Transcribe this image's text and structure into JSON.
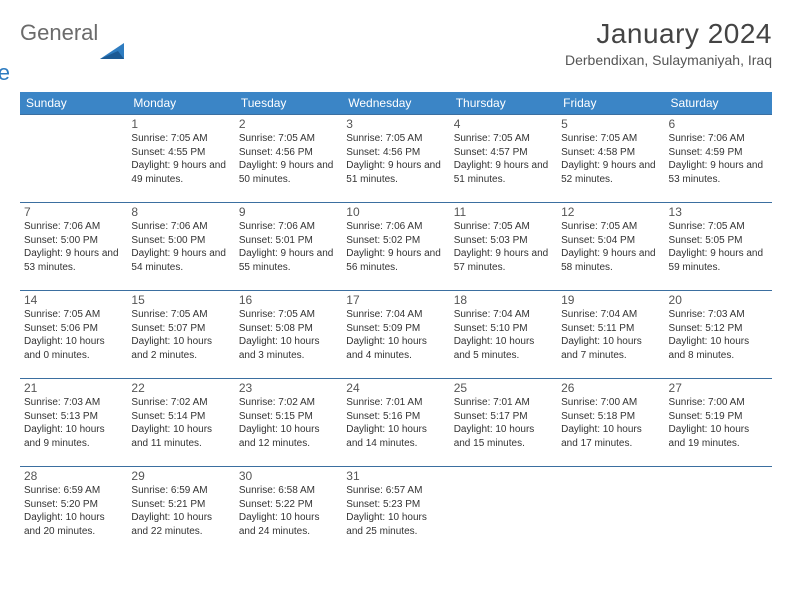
{
  "logo": {
    "word1": "General",
    "word2": "Blue",
    "color_gray": "#6b6b6b",
    "color_blue": "#2e7cc0"
  },
  "title": "January 2024",
  "location": "Derbendixan, Sulaymaniyah, Iraq",
  "headers": [
    "Sunday",
    "Monday",
    "Tuesday",
    "Wednesday",
    "Thursday",
    "Friday",
    "Saturday"
  ],
  "header_bg": "#3b85c6",
  "row_border": "#3b6fa0",
  "weeks": [
    [
      null,
      {
        "n": "1",
        "sr": "7:05 AM",
        "ss": "4:55 PM",
        "dl": "9 hours and 49 minutes."
      },
      {
        "n": "2",
        "sr": "7:05 AM",
        "ss": "4:56 PM",
        "dl": "9 hours and 50 minutes."
      },
      {
        "n": "3",
        "sr": "7:05 AM",
        "ss": "4:56 PM",
        "dl": "9 hours and 51 minutes."
      },
      {
        "n": "4",
        "sr": "7:05 AM",
        "ss": "4:57 PM",
        "dl": "9 hours and 51 minutes."
      },
      {
        "n": "5",
        "sr": "7:05 AM",
        "ss": "4:58 PM",
        "dl": "9 hours and 52 minutes."
      },
      {
        "n": "6",
        "sr": "7:06 AM",
        "ss": "4:59 PM",
        "dl": "9 hours and 53 minutes."
      }
    ],
    [
      {
        "n": "7",
        "sr": "7:06 AM",
        "ss": "5:00 PM",
        "dl": "9 hours and 53 minutes."
      },
      {
        "n": "8",
        "sr": "7:06 AM",
        "ss": "5:00 PM",
        "dl": "9 hours and 54 minutes."
      },
      {
        "n": "9",
        "sr": "7:06 AM",
        "ss": "5:01 PM",
        "dl": "9 hours and 55 minutes."
      },
      {
        "n": "10",
        "sr": "7:06 AM",
        "ss": "5:02 PM",
        "dl": "9 hours and 56 minutes."
      },
      {
        "n": "11",
        "sr": "7:05 AM",
        "ss": "5:03 PM",
        "dl": "9 hours and 57 minutes."
      },
      {
        "n": "12",
        "sr": "7:05 AM",
        "ss": "5:04 PM",
        "dl": "9 hours and 58 minutes."
      },
      {
        "n": "13",
        "sr": "7:05 AM",
        "ss": "5:05 PM",
        "dl": "9 hours and 59 minutes."
      }
    ],
    [
      {
        "n": "14",
        "sr": "7:05 AM",
        "ss": "5:06 PM",
        "dl": "10 hours and 0 minutes."
      },
      {
        "n": "15",
        "sr": "7:05 AM",
        "ss": "5:07 PM",
        "dl": "10 hours and 2 minutes."
      },
      {
        "n": "16",
        "sr": "7:05 AM",
        "ss": "5:08 PM",
        "dl": "10 hours and 3 minutes."
      },
      {
        "n": "17",
        "sr": "7:04 AM",
        "ss": "5:09 PM",
        "dl": "10 hours and 4 minutes."
      },
      {
        "n": "18",
        "sr": "7:04 AM",
        "ss": "5:10 PM",
        "dl": "10 hours and 5 minutes."
      },
      {
        "n": "19",
        "sr": "7:04 AM",
        "ss": "5:11 PM",
        "dl": "10 hours and 7 minutes."
      },
      {
        "n": "20",
        "sr": "7:03 AM",
        "ss": "5:12 PM",
        "dl": "10 hours and 8 minutes."
      }
    ],
    [
      {
        "n": "21",
        "sr": "7:03 AM",
        "ss": "5:13 PM",
        "dl": "10 hours and 9 minutes."
      },
      {
        "n": "22",
        "sr": "7:02 AM",
        "ss": "5:14 PM",
        "dl": "10 hours and 11 minutes."
      },
      {
        "n": "23",
        "sr": "7:02 AM",
        "ss": "5:15 PM",
        "dl": "10 hours and 12 minutes."
      },
      {
        "n": "24",
        "sr": "7:01 AM",
        "ss": "5:16 PM",
        "dl": "10 hours and 14 minutes."
      },
      {
        "n": "25",
        "sr": "7:01 AM",
        "ss": "5:17 PM",
        "dl": "10 hours and 15 minutes."
      },
      {
        "n": "26",
        "sr": "7:00 AM",
        "ss": "5:18 PM",
        "dl": "10 hours and 17 minutes."
      },
      {
        "n": "27",
        "sr": "7:00 AM",
        "ss": "5:19 PM",
        "dl": "10 hours and 19 minutes."
      }
    ],
    [
      {
        "n": "28",
        "sr": "6:59 AM",
        "ss": "5:20 PM",
        "dl": "10 hours and 20 minutes."
      },
      {
        "n": "29",
        "sr": "6:59 AM",
        "ss": "5:21 PM",
        "dl": "10 hours and 22 minutes."
      },
      {
        "n": "30",
        "sr": "6:58 AM",
        "ss": "5:22 PM",
        "dl": "10 hours and 24 minutes."
      },
      {
        "n": "31",
        "sr": "6:57 AM",
        "ss": "5:23 PM",
        "dl": "10 hours and 25 minutes."
      },
      null,
      null,
      null
    ]
  ],
  "labels": {
    "sunrise": "Sunrise:",
    "sunset": "Sunset:",
    "daylight": "Daylight:"
  }
}
